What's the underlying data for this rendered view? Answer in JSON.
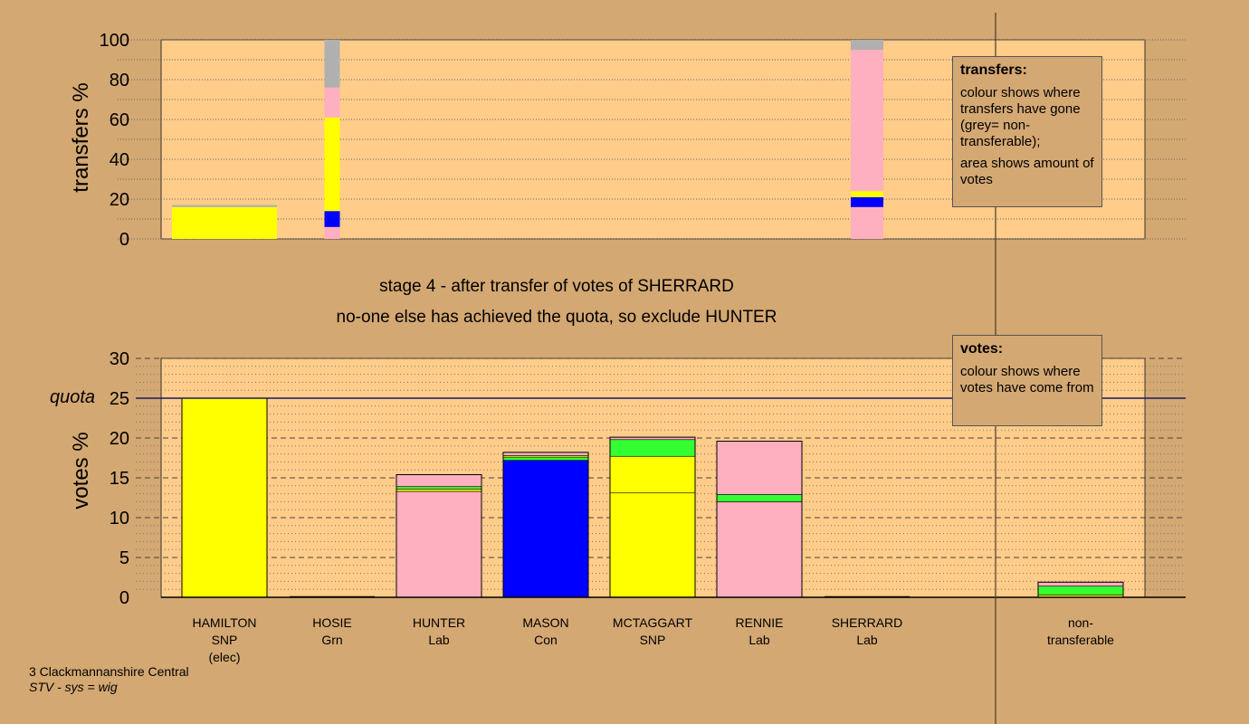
{
  "stage_title": "stage 4 - after transfer of votes of SHERRARD",
  "stage_subtitle": "no-one else has achieved the quota, so exclude HUNTER",
  "legend_transfers": {
    "title": "transfers:",
    "line1": "colour shows where transfers have gone (grey= non-transferable);",
    "line2": "area shows amount of votes"
  },
  "legend_votes": {
    "title": "votes:",
    "line1": "colour shows where votes have come from"
  },
  "footer": {
    "line1": "3 Clackmannanshire Central",
    "line2": "STV - sys = wig"
  },
  "colors": {
    "background": "#d4a872",
    "plot": "#ffcc8a",
    "snp": "#ffff00",
    "grn": "#33ff33",
    "lab": "#ffb0c0",
    "con": "#0000ff",
    "nontransferable": "#b0b0b0"
  },
  "chart_data": [
    {
      "type": "bar",
      "name": "transfers",
      "ylabel": "transfers %",
      "ylim": [
        0,
        100
      ],
      "yticks": [
        0,
        20,
        40,
        60,
        80,
        100
      ],
      "bars": [
        {
          "category": "HAMILTON",
          "segments": [
            {
              "party": "snp",
              "from": 0,
              "to": 16
            },
            {
              "party": "nontransferable",
              "from": 16,
              "to": 17
            }
          ]
        },
        {
          "category": "HOSIE",
          "segments": [
            {
              "party": "lab",
              "from": 0,
              "to": 6
            },
            {
              "party": "con",
              "from": 6,
              "to": 14
            },
            {
              "party": "snp",
              "from": 14,
              "to": 61
            },
            {
              "party": "lab",
              "from": 61,
              "to": 76
            },
            {
              "party": "nontransferable",
              "from": 76,
              "to": 100
            }
          ]
        },
        {
          "category": "SHERRARD",
          "segments": [
            {
              "party": "lab",
              "from": 0,
              "to": 16
            },
            {
              "party": "con",
              "from": 16,
              "to": 21
            },
            {
              "party": "snp",
              "from": 21,
              "to": 24
            },
            {
              "party": "lab",
              "from": 24,
              "to": 95
            },
            {
              "party": "nontransferable",
              "from": 95,
              "to": 100
            }
          ]
        }
      ]
    },
    {
      "type": "bar",
      "name": "votes",
      "ylabel": "votes %",
      "ylim": [
        0,
        30
      ],
      "yticks": [
        0,
        5,
        10,
        15,
        20,
        25,
        30
      ],
      "quota": 25,
      "quota_label": "quota",
      "categories": [
        {
          "name": "HAMILTON",
          "party": "SNP",
          "note": "(elec)"
        },
        {
          "name": "HOSIE",
          "party": "Grn",
          "note": ""
        },
        {
          "name": "HUNTER",
          "party": "Lab",
          "note": ""
        },
        {
          "name": "MASON",
          "party": "Con",
          "note": ""
        },
        {
          "name": "MCTAGGART",
          "party": "SNP",
          "note": ""
        },
        {
          "name": "RENNIE",
          "party": "Lab",
          "note": ""
        },
        {
          "name": "SHERRARD",
          "party": "Lab",
          "note": ""
        },
        {
          "name": "non-",
          "party": "transferable",
          "note": ""
        }
      ],
      "bars": [
        {
          "category": "HAMILTON",
          "segments": [
            {
              "party": "snp",
              "from": 0,
              "to": 25
            }
          ]
        },
        {
          "category": "HOSIE",
          "segments": []
        },
        {
          "category": "HUNTER",
          "segments": [
            {
              "party": "lab",
              "from": 0,
              "to": 13.3
            },
            {
              "party": "snp",
              "from": 13.3,
              "to": 13.6
            },
            {
              "party": "grn",
              "from": 13.6,
              "to": 13.9
            },
            {
              "party": "lab",
              "from": 13.9,
              "to": 15.4
            }
          ]
        },
        {
          "category": "MASON",
          "segments": [
            {
              "party": "con",
              "from": 0,
              "to": 17.2
            },
            {
              "party": "grn",
              "from": 17.2,
              "to": 17.6
            },
            {
              "party": "snp",
              "from": 17.6,
              "to": 17.8
            },
            {
              "party": "lab",
              "from": 17.8,
              "to": 18.2
            }
          ]
        },
        {
          "category": "MCTAGGART",
          "segments": [
            {
              "party": "snp",
              "from": 0,
              "to": 13.1
            },
            {
              "party": "snp",
              "from": 13.1,
              "to": 17.7
            },
            {
              "party": "grn",
              "from": 17.7,
              "to": 19.8
            },
            {
              "party": "lab",
              "from": 19.8,
              "to": 20.1
            }
          ]
        },
        {
          "category": "RENNIE",
          "segments": [
            {
              "party": "lab",
              "from": 0,
              "to": 12.0
            },
            {
              "party": "grn",
              "from": 12.0,
              "to": 12.9
            },
            {
              "party": "lab",
              "from": 12.9,
              "to": 19.6
            }
          ]
        },
        {
          "category": "SHERRARD",
          "segments": []
        },
        {
          "category": "non-",
          "segments": [
            {
              "party": "snp",
              "from": 0,
              "to": 0.3
            },
            {
              "party": "grn",
              "from": 0.3,
              "to": 1.4
            },
            {
              "party": "lab",
              "from": 1.4,
              "to": 1.9
            }
          ]
        }
      ]
    }
  ]
}
